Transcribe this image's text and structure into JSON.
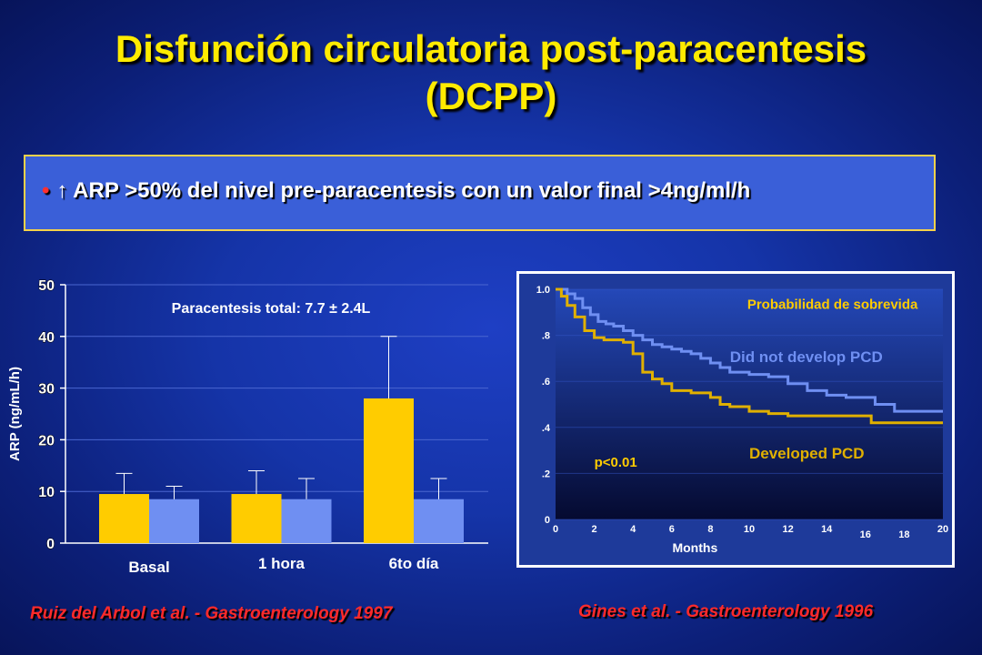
{
  "slide": {
    "title_line1": "Disfunción circulatoria post-paracentesis",
    "title_line2": "(DCPP)",
    "bullet_symbol": "•",
    "bullet_text": "↑ ARP >50% del nivel pre-paracentesis con un valor final >4ng/ml/h",
    "ref_left": "Ruiz del Arbol et al. - Gastroenterology 1997",
    "ref_right": "Gines et al. - Gastroenterology 1996"
  },
  "colors": {
    "bar_yellow": "#ffcc00",
    "bar_blue": "#6f8ff2",
    "km_top_curve": "#6f8ff2",
    "km_bottom_curve": "#e0b000",
    "title": "#ffeb00",
    "reference": "#ff2a2a"
  },
  "chart_data": [
    {
      "type": "bar",
      "annotation": "Paracentesis total: 7.7 ± 2.4L",
      "ylabel": "ARP (ng/mL/h)",
      "xlabel": "",
      "categories": [
        "Basal",
        "1 hora",
        "6to día"
      ],
      "ylim": [
        0,
        50
      ],
      "yticks": [
        0,
        10,
        20,
        30,
        40,
        50
      ],
      "grid": true,
      "series": [
        {
          "color": "#ffcc00",
          "values": [
            9.5,
            9.5,
            28
          ],
          "error_top": [
            13.5,
            14,
            40
          ]
        },
        {
          "color": "#6f8ff2",
          "values": [
            8.5,
            8.5,
            8.5
          ],
          "error_top": [
            11,
            12.5,
            12.5
          ]
        }
      ]
    },
    {
      "type": "line",
      "title": "Probabilidad de sobrevida",
      "xlabel": "Months",
      "xlim": [
        0,
        20
      ],
      "ylim": [
        0,
        1
      ],
      "xticks": [
        0,
        2,
        4,
        6,
        8,
        10,
        12,
        14,
        16,
        18,
        20
      ],
      "yticks": [
        0,
        0.2,
        0.4,
        0.6,
        0.8,
        1.0
      ],
      "ytick_labels": [
        "0",
        ".2",
        ".4",
        ".6",
        ".8",
        "1.0"
      ],
      "annotation": "p<0.01",
      "series": [
        {
          "name": "Did not develop PCD",
          "color": "#6f8ff2",
          "x": [
            0,
            0.3,
            0.6,
            1.0,
            1.4,
            1.8,
            2.2,
            2.6,
            3.0,
            3.5,
            4.0,
            4.5,
            5.0,
            5.5,
            6.0,
            6.5,
            7.0,
            7.5,
            8.0,
            8.5,
            9.0,
            10.0,
            11.0,
            12.0,
            13.0,
            14.0,
            15.0,
            16.0,
            16.5,
            17.5,
            18.5,
            20.0
          ],
          "y": [
            1.0,
            1.0,
            0.98,
            0.96,
            0.92,
            0.89,
            0.86,
            0.85,
            0.84,
            0.82,
            0.8,
            0.78,
            0.76,
            0.75,
            0.74,
            0.73,
            0.72,
            0.7,
            0.68,
            0.66,
            0.64,
            0.63,
            0.62,
            0.59,
            0.56,
            0.54,
            0.53,
            0.53,
            0.5,
            0.47,
            0.47,
            0.47
          ]
        },
        {
          "name": "Developed PCD",
          "color": "#e0b000",
          "x": [
            0,
            0.3,
            0.6,
            1.0,
            1.5,
            2.0,
            2.5,
            3.0,
            3.5,
            4.0,
            4.5,
            5.0,
            5.5,
            6.0,
            7.0,
            8.0,
            8.5,
            9.0,
            10.0,
            11.0,
            12.0,
            13.0,
            14.0,
            15.0,
            16.0,
            16.3,
            17.0,
            18.0,
            20.0
          ],
          "y": [
            1.0,
            0.97,
            0.93,
            0.88,
            0.82,
            0.79,
            0.78,
            0.78,
            0.77,
            0.72,
            0.64,
            0.61,
            0.59,
            0.56,
            0.55,
            0.53,
            0.5,
            0.49,
            0.47,
            0.46,
            0.45,
            0.45,
            0.45,
            0.45,
            0.45,
            0.42,
            0.42,
            0.42,
            0.42
          ]
        }
      ]
    }
  ]
}
